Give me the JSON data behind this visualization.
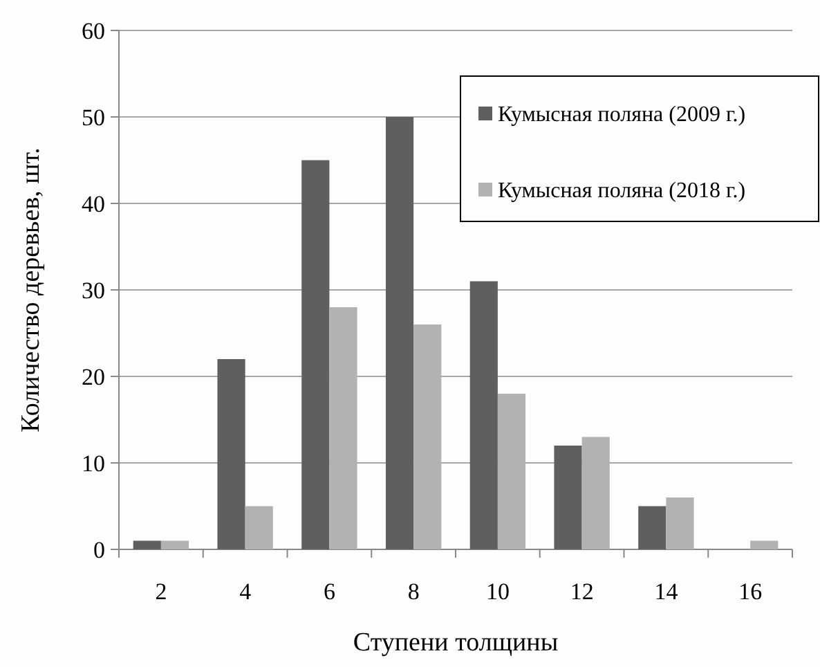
{
  "chart_data": {
    "type": "bar",
    "xlabel": "Ступени толщины",
    "ylabel": "Количество деревьев, шт.",
    "categories": [
      "2",
      "4",
      "6",
      "8",
      "10",
      "12",
      "14",
      "16"
    ],
    "series": [
      {
        "name": "Кумысная поляна (2009 г.)",
        "color": "#5f5f5f",
        "values": [
          1,
          22,
          45,
          50,
          31,
          12,
          5,
          0
        ]
      },
      {
        "name": "Кумысная поляна (2018 г.)",
        "color": "#b2b2b2",
        "values": [
          1,
          5,
          28,
          26,
          18,
          13,
          6,
          1
        ]
      }
    ],
    "ylim": [
      0,
      60
    ],
    "yticks": [
      0,
      10,
      20,
      30,
      40,
      50,
      60
    ],
    "grid": "y",
    "legend": "top right"
  }
}
